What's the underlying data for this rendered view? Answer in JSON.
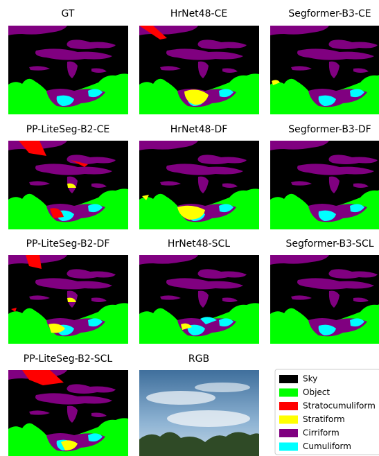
{
  "panels": [
    {
      "title": "GT"
    },
    {
      "title": "HrNet48-CE"
    },
    {
      "title": "Segformer-B3-CE"
    },
    {
      "title": "PP-LiteSeg-B2-CE"
    },
    {
      "title": "HrNet48-DF"
    },
    {
      "title": "Segformer-B3-DF"
    },
    {
      "title": "PP-LiteSeg-B2-DF"
    },
    {
      "title": "HrNet48-SCL"
    },
    {
      "title": "Segformer-B3-SCL"
    },
    {
      "title": "PP-LiteSeg-B2-SCL"
    },
    {
      "title": "RGB"
    }
  ],
  "legend": {
    "entries": [
      {
        "label": "Sky",
        "color": "#000000"
      },
      {
        "label": "Object",
        "color": "#00ff00"
      },
      {
        "label": "Stratocumuliform",
        "color": "#ff0000"
      },
      {
        "label": "Stratiform",
        "color": "#ffff00"
      },
      {
        "label": "Cirriform",
        "color": "#800080"
      },
      {
        "label": "Cumuliform",
        "color": "#00ffff"
      }
    ]
  }
}
